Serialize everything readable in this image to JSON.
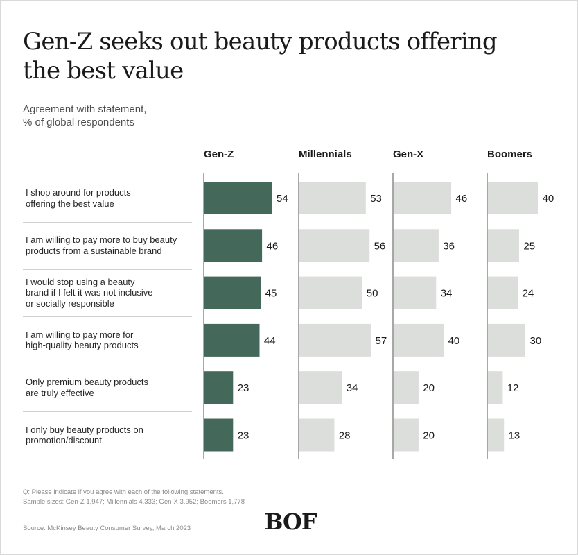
{
  "title": "Gen-Z seeks out beauty products offering the best value",
  "subtitle_line1": "Agreement with statement,",
  "subtitle_line2": "% of global respondents",
  "colors": {
    "genz": "#44695a",
    "other": "#dcdedb",
    "axis": "#6e6e6e"
  },
  "chart_data": {
    "type": "bar",
    "orientation": "horizontal",
    "title": "Gen-Z seeks out beauty products offering the best value",
    "categories": [
      "I shop around for products offering the best value",
      "I am willing to pay more to buy beauty products from a sustainable brand",
      "I would stop using a beauty brand if I felt it was not inclusive or socially responsible",
      "I am willing to pay more for high-quality beauty products",
      "Only premium beauty products are truly effective",
      "I only buy beauty products on promotion/discount"
    ],
    "category_lines": [
      [
        "I shop around for products",
        "offering the best value"
      ],
      [
        "I am willing to pay more to buy beauty",
        "products from a sustainable brand"
      ],
      [
        "I would stop using a beauty",
        "brand if I felt it was not inclusive",
        "or socially responsible"
      ],
      [
        "I am willing to pay more for",
        "high-quality beauty products"
      ],
      [
        "Only premium beauty products",
        "are truly effective"
      ],
      [
        "I only buy beauty products on",
        "promotion/discount"
      ]
    ],
    "series": [
      {
        "name": "Gen-Z",
        "values": [
          54,
          46,
          45,
          44,
          23,
          23
        ]
      },
      {
        "name": "Millennials",
        "values": [
          53,
          56,
          50,
          57,
          34,
          28
        ]
      },
      {
        "name": "Gen-X",
        "values": [
          46,
          36,
          34,
          40,
          20,
          20
        ]
      },
      {
        "name": "Boomers",
        "values": [
          40,
          25,
          24,
          30,
          12,
          13
        ]
      }
    ],
    "xlim": [
      0,
      100
    ],
    "grid": false,
    "legend": "column headers"
  },
  "footnote_q": "Q: Please indicate if you agree with each of the following statements.",
  "footnote_samples": "Sample sizes: Gen-Z 1,947; Millennials 4,333; Gen-X 3,952; Boomers 1,778",
  "source": "Source: McKinsey Beauty Consumer Survey, March 2023",
  "logo_text": "BOF"
}
